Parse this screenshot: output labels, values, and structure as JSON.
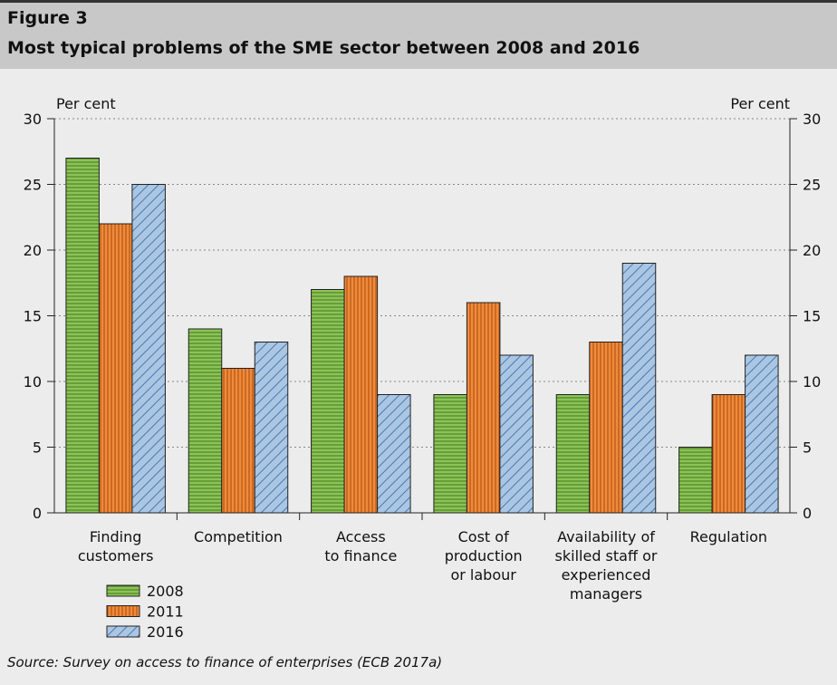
{
  "figure_label": "Figure 3",
  "chart_data": {
    "type": "bar",
    "title": "Most typical problems of the SME sector between 2008 and 2016",
    "y_label": "Per cent",
    "y2_label": "Per cent",
    "categories": [
      [
        "Finding",
        "customers"
      ],
      [
        "Competition"
      ],
      [
        "Access",
        "to finance"
      ],
      [
        "Cost of",
        "production",
        "or labour"
      ],
      [
        "Availability of",
        "skilled staff or",
        "experienced",
        "managers"
      ],
      [
        "Regulation"
      ]
    ],
    "series": [
      {
        "name": "2008",
        "color": "#8dc257",
        "values": [
          27,
          14,
          17,
          9,
          9,
          5
        ]
      },
      {
        "name": "2011",
        "color": "#f08a3c",
        "values": [
          22,
          11,
          18,
          16,
          13,
          9
        ]
      },
      {
        "name": "2016",
        "color": "#aac6e2",
        "values": [
          25,
          13,
          9,
          12,
          19,
          12
        ]
      }
    ],
    "ylim": [
      0,
      30
    ],
    "yticks": [
      0,
      5,
      10,
      15,
      20,
      25,
      30
    ],
    "y2lim": [
      0,
      30
    ],
    "y2ticks": [
      0,
      5,
      10,
      15,
      20,
      25,
      30
    ],
    "grid": true,
    "legend": "bottom-left"
  },
  "source": "Source: Survey on access to finance of enterprises (ECB 2017a)"
}
